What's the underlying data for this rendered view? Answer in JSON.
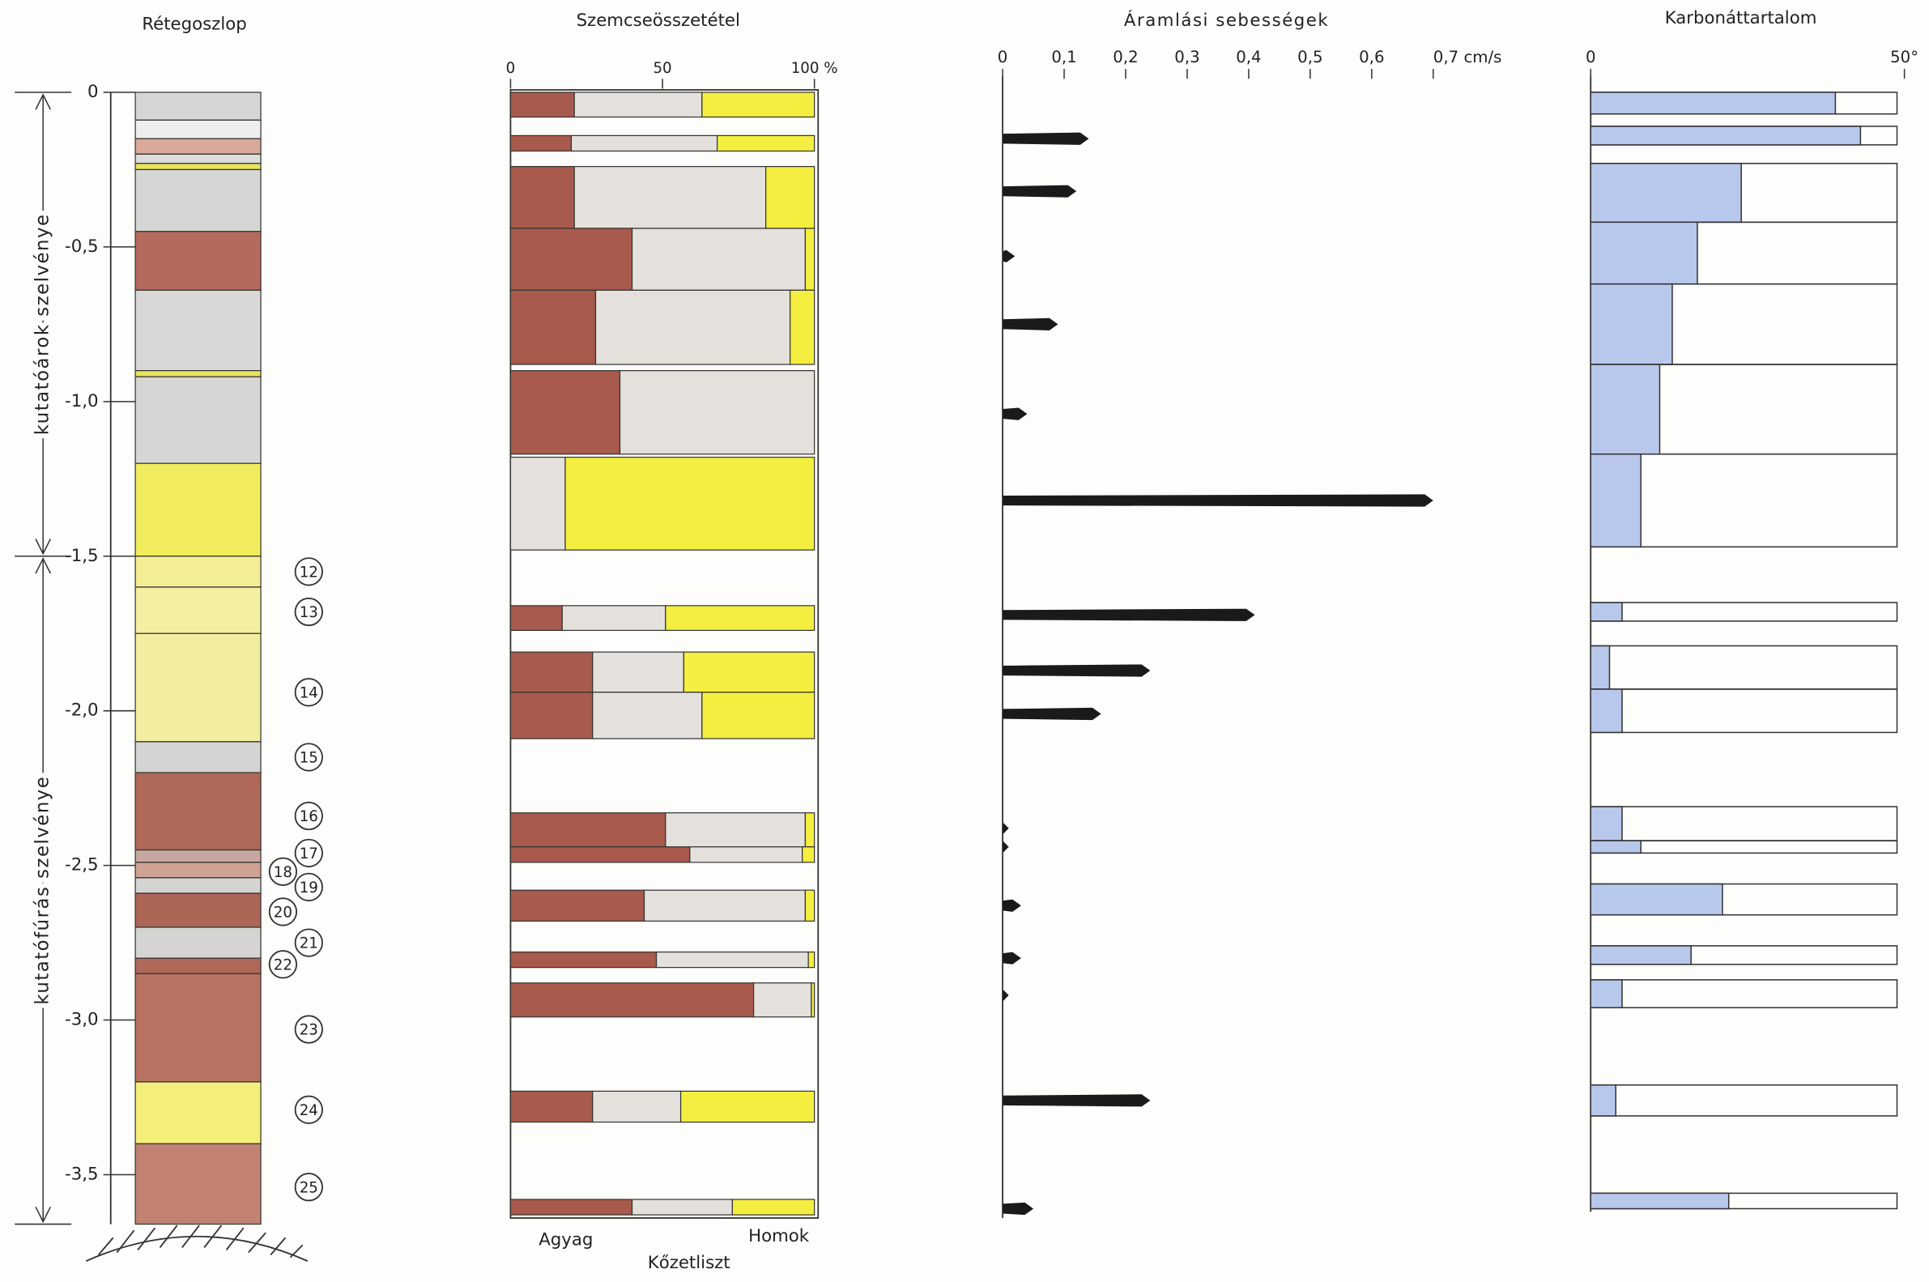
{
  "titles": {
    "column": "Rétegoszlop",
    "grain": "Szemcseösszetétel",
    "velocity": "Áramlási sebességek",
    "carbonate": "Karbonáttartalom"
  },
  "depth_axis": {
    "ylim": [
      0,
      -3.66
    ],
    "yticks": [
      0,
      {
        "value": -0.5,
        "label": "-0,5"
      },
      {
        "value": -1.0,
        "label": "-1,0"
      },
      {
        "value": -1.5,
        "label": "-1,5"
      },
      {
        "value": -2.0,
        "label": "-2,0"
      },
      {
        "value": -2.5,
        "label": "-2,5"
      },
      {
        "value": -3.0,
        "label": "-3,0"
      },
      {
        "value": -3.5,
        "label": "-3,5"
      }
    ]
  },
  "sections": [
    {
      "label": "kutatóárok szelvénye",
      "top": 0,
      "bottom": -1.5
    },
    {
      "label": "kutatófúrás szelvénye",
      "top": -1.5,
      "bottom": -3.66
    }
  ],
  "layers": [
    {
      "top": 0,
      "bottom": -0.09,
      "color": "#d6d6d4"
    },
    {
      "top": -0.09,
      "bottom": -0.15,
      "color": "#eeeeec"
    },
    {
      "top": -0.15,
      "bottom": -0.2,
      "color": "#d9a99a"
    },
    {
      "top": -0.2,
      "bottom": -0.23,
      "color": "#dcdcda"
    },
    {
      "top": -0.23,
      "bottom": -0.25,
      "color": "#e8e45a"
    },
    {
      "top": -0.25,
      "bottom": -0.45,
      "color": "#d6d6d4"
    },
    {
      "top": -0.45,
      "bottom": -0.64,
      "color": "#b46a5c"
    },
    {
      "top": -0.64,
      "bottom": -0.9,
      "color": "#d8d8d6"
    },
    {
      "top": -0.9,
      "bottom": -0.92,
      "color": "#e8e45a"
    },
    {
      "top": -0.92,
      "bottom": -1.2,
      "color": "#d6d6d4"
    },
    {
      "top": -1.2,
      "bottom": -1.5,
      "color": "#f1ec5e"
    },
    {
      "top": -1.5,
      "bottom": -1.6,
      "color": "#f3ee96"
    },
    {
      "top": -1.6,
      "bottom": -1.75,
      "color": "#f4f0a2"
    },
    {
      "top": -1.75,
      "bottom": -2.1,
      "color": "#f2eea0"
    },
    {
      "top": -2.1,
      "bottom": -2.2,
      "color": "#d4d4d2"
    },
    {
      "top": -2.2,
      "bottom": -2.45,
      "color": "#b06858"
    },
    {
      "top": -2.45,
      "bottom": -2.49,
      "color": "#c6a8a0"
    },
    {
      "top": -2.49,
      "bottom": -2.54,
      "color": "#d0a294"
    },
    {
      "top": -2.54,
      "bottom": -2.59,
      "color": "#d4d4d2"
    },
    {
      "top": -2.59,
      "bottom": -2.7,
      "color": "#ad6556"
    },
    {
      "top": -2.7,
      "bottom": -2.8,
      "color": "#d4d4d2"
    },
    {
      "top": -2.8,
      "bottom": -2.85,
      "color": "#b06858"
    },
    {
      "top": -2.85,
      "bottom": -3.2,
      "color": "#b87262"
    },
    {
      "top": -3.2,
      "bottom": -3.4,
      "color": "#f4ee7a"
    },
    {
      "top": -3.4,
      "bottom": -3.66,
      "color": "#c28272"
    }
  ],
  "samples": [
    {
      "label": 12,
      "depth": -1.55
    },
    {
      "label": 13,
      "depth": -1.68
    },
    {
      "label": 14,
      "depth": -1.94
    },
    {
      "label": 15,
      "depth": -2.15
    },
    {
      "label": 16,
      "depth": -2.34
    },
    {
      "label": 17,
      "depth": -2.46
    },
    {
      "label": 18,
      "depth": -2.52
    },
    {
      "label": 19,
      "depth": -2.57
    },
    {
      "label": 20,
      "depth": -2.65
    },
    {
      "label": 21,
      "depth": -2.75
    },
    {
      "label": 22,
      "depth": -2.82
    },
    {
      "label": 23,
      "depth": -3.03
    },
    {
      "label": 24,
      "depth": -3.29
    },
    {
      "label": 25,
      "depth": -3.54
    }
  ],
  "grain": {
    "xlim": [
      0,
      100
    ],
    "xticks": [
      0,
      50,
      {
        "value": 100,
        "label": "100 %"
      }
    ],
    "labels": [
      "Agyag",
      "Kőzetliszt",
      "Homok"
    ],
    "colors": [
      "#a85a4c",
      "#e4e0dc",
      "#f4ee40"
    ],
    "rows": [
      {
        "top": 0,
        "bottom": -0.08,
        "values": [
          21,
          42,
          37
        ]
      },
      {
        "top": -0.14,
        "bottom": -0.19,
        "values": [
          20,
          48,
          32
        ]
      },
      {
        "top": -0.24,
        "bottom": -0.44,
        "values": [
          21,
          63,
          16
        ]
      },
      {
        "top": -0.44,
        "bottom": -0.64,
        "values": [
          40,
          57,
          3
        ]
      },
      {
        "top": -0.64,
        "bottom": -0.88,
        "values": [
          28,
          64,
          8
        ]
      },
      {
        "top": -0.9,
        "bottom": -1.17,
        "values": [
          36,
          64,
          0
        ]
      },
      {
        "top": -1.18,
        "bottom": -1.48,
        "values": [
          0,
          18,
          82
        ]
      },
      {
        "top": -1.66,
        "bottom": -1.74,
        "values": [
          17,
          34,
          49
        ]
      },
      {
        "top": -1.81,
        "bottom": -1.94,
        "values": [
          27,
          30,
          43
        ]
      },
      {
        "top": -1.94,
        "bottom": -2.09,
        "values": [
          27,
          36,
          37
        ]
      },
      {
        "top": -2.33,
        "bottom": -2.44,
        "values": [
          51,
          46,
          3
        ]
      },
      {
        "top": -2.44,
        "bottom": -2.49,
        "values": [
          59,
          37,
          4
        ]
      },
      {
        "top": -2.58,
        "bottom": -2.68,
        "values": [
          44,
          53,
          3
        ]
      },
      {
        "top": -2.78,
        "bottom": -2.83,
        "values": [
          48,
          50,
          2
        ]
      },
      {
        "top": -2.88,
        "bottom": -2.99,
        "values": [
          80,
          19,
          1
        ]
      },
      {
        "top": -3.23,
        "bottom": -3.33,
        "values": [
          27,
          29,
          44
        ]
      },
      {
        "top": -3.58,
        "bottom": -3.63,
        "values": [
          40,
          33,
          27
        ]
      }
    ]
  },
  "velocity": {
    "xlim": [
      0,
      0.7
    ],
    "xticks": [
      0,
      {
        "value": 0.1,
        "label": "0,1"
      },
      {
        "value": 0.2,
        "label": "0,2"
      },
      {
        "value": 0.3,
        "label": "0,3"
      },
      {
        "value": 0.4,
        "label": "0,4"
      },
      {
        "value": 0.5,
        "label": "0,5"
      },
      {
        "value": 0.6,
        "label": "0,6"
      },
      {
        "value": 0.7,
        "label": "0,7 cm/s"
      }
    ],
    "depths": [
      -0.15,
      -0.32,
      -0.53,
      -0.75,
      -1.04,
      -1.32,
      -1.69,
      -1.87,
      -2.01,
      -2.38,
      -2.44,
      -2.63,
      -2.8,
      -2.92,
      -3.26,
      -3.61
    ],
    "values": [
      0.14,
      0.12,
      0.02,
      0.09,
      0.04,
      0.7,
      0.41,
      0.24,
      0.16,
      0.01,
      0.01,
      0.03,
      0.03,
      0.01,
      0.24,
      0.05
    ],
    "color": "#1a1a1a"
  },
  "carbonate": {
    "xlim": [
      0,
      50
    ],
    "xticks": [
      0,
      {
        "value": 50,
        "label": "50°"
      }
    ],
    "color": "#b8c8ec",
    "rows": [
      {
        "top": 0,
        "bottom": -0.07,
        "value": 39
      },
      {
        "top": -0.11,
        "bottom": -0.17,
        "value": 43
      },
      {
        "top": -0.23,
        "bottom": -0.42,
        "value": 24
      },
      {
        "top": -0.42,
        "bottom": -0.62,
        "value": 17
      },
      {
        "top": -0.62,
        "bottom": -0.88,
        "value": 13
      },
      {
        "top": -0.88,
        "bottom": -1.17,
        "value": 11
      },
      {
        "top": -1.17,
        "bottom": -1.47,
        "value": 8
      },
      {
        "top": -1.65,
        "bottom": -1.71,
        "value": 5
      },
      {
        "top": -1.79,
        "bottom": -1.93,
        "value": 3
      },
      {
        "top": -1.93,
        "bottom": -2.07,
        "value": 5
      },
      {
        "top": -2.31,
        "bottom": -2.42,
        "value": 5
      },
      {
        "top": -2.42,
        "bottom": -2.46,
        "value": 8
      },
      {
        "top": -2.56,
        "bottom": -2.66,
        "value": 21
      },
      {
        "top": -2.76,
        "bottom": -2.82,
        "value": 16
      },
      {
        "top": -2.87,
        "bottom": -2.96,
        "value": 5
      },
      {
        "top": -3.21,
        "bottom": -3.31,
        "value": 4
      },
      {
        "top": -3.56,
        "bottom": -3.61,
        "value": 22
      }
    ]
  }
}
